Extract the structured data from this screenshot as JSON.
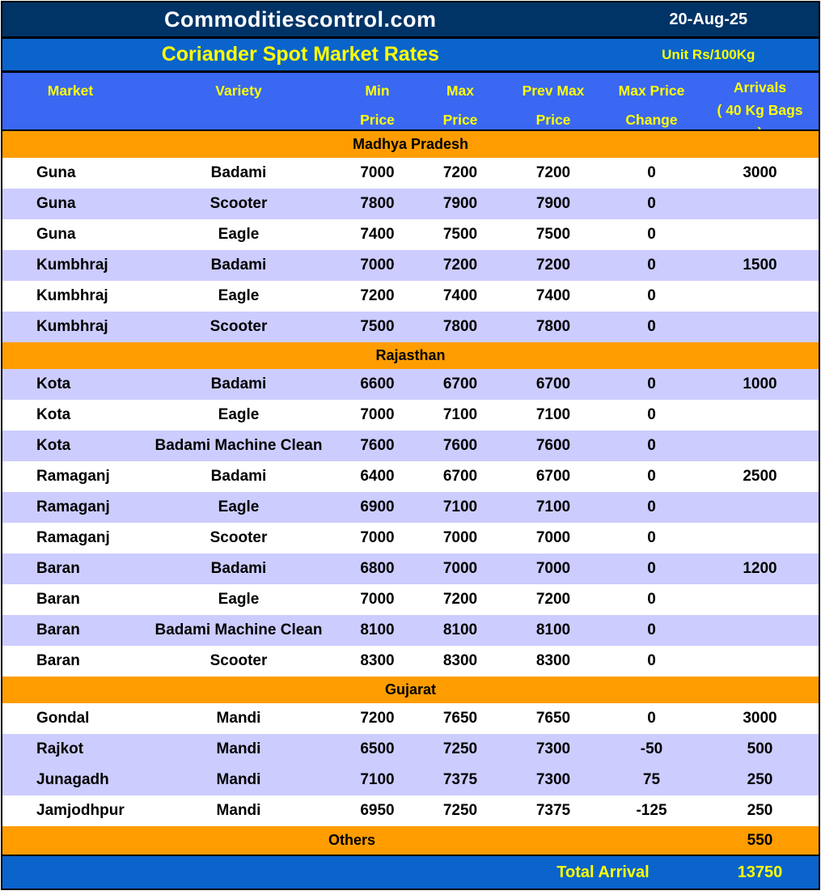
{
  "header": {
    "site_title": "Commoditiescontrol.com",
    "date": "20-Aug-25",
    "report_title": "Coriander Spot Market Rates",
    "unit": "Unit Rs/100Kg"
  },
  "table": {
    "columns": [
      {
        "key": "market",
        "lines": [
          "Market"
        ]
      },
      {
        "key": "variety",
        "lines": [
          "Variety"
        ]
      },
      {
        "key": "min",
        "lines": [
          "Min",
          "Price"
        ]
      },
      {
        "key": "max",
        "lines": [
          "Max",
          "Price"
        ]
      },
      {
        "key": "prev_max",
        "lines": [
          "Prev Max",
          "Price"
        ]
      },
      {
        "key": "change",
        "lines": [
          "Max Price",
          "Change"
        ]
      },
      {
        "key": "arrivals",
        "lines": [
          "Arrivals",
          "( 40 Kg Bags",
          ")"
        ]
      }
    ],
    "sections": [
      {
        "name": "Madhya Pradesh",
        "rows": [
          {
            "shade": "white",
            "cells": [
              "Guna",
              "Badami",
              "7000",
              "7200",
              "7200",
              "0",
              "3000"
            ]
          },
          {
            "shade": "lav",
            "cells": [
              "Guna",
              "Scooter",
              "7800",
              "7900",
              "7900",
              "0",
              ""
            ]
          },
          {
            "shade": "white",
            "cells": [
              "Guna",
              "Eagle",
              "7400",
              "7500",
              "7500",
              "0",
              ""
            ]
          },
          {
            "shade": "lav",
            "cells": [
              "Kumbhraj",
              "Badami",
              "7000",
              "7200",
              "7200",
              "0",
              "1500"
            ]
          },
          {
            "shade": "white",
            "cells": [
              "Kumbhraj",
              "Eagle",
              "7200",
              "7400",
              "7400",
              "0",
              ""
            ]
          },
          {
            "shade": "lav",
            "cells": [
              "Kumbhraj",
              "Scooter",
              "7500",
              "7800",
              "7800",
              "0",
              ""
            ]
          }
        ]
      },
      {
        "name": "Rajasthan",
        "rows": [
          {
            "shade": "lav",
            "cells": [
              "Kota",
              "Badami",
              "6600",
              "6700",
              "6700",
              "0",
              "1000"
            ]
          },
          {
            "shade": "white",
            "cells": [
              "Kota",
              "Eagle",
              "7000",
              "7100",
              "7100",
              "0",
              ""
            ]
          },
          {
            "shade": "lav",
            "cells": [
              "Kota",
              "Badami Machine Clean",
              "7600",
              "7600",
              "7600",
              "0",
              ""
            ]
          },
          {
            "shade": "white",
            "cells": [
              "Ramaganj",
              "Badami",
              "6400",
              "6700",
              "6700",
              "0",
              "2500"
            ]
          },
          {
            "shade": "lav",
            "cells": [
              "Ramaganj",
              "Eagle",
              "6900",
              "7100",
              "7100",
              "0",
              ""
            ]
          },
          {
            "shade": "white",
            "cells": [
              "Ramaganj",
              "Scooter",
              "7000",
              "7000",
              "7000",
              "0",
              ""
            ]
          },
          {
            "shade": "lav",
            "cells": [
              "Baran",
              "Badami",
              "6800",
              "7000",
              "7000",
              "0",
              "1200"
            ]
          },
          {
            "shade": "white",
            "cells": [
              "Baran",
              "Eagle",
              "7000",
              "7200",
              "7200",
              "0",
              ""
            ]
          },
          {
            "shade": "lav",
            "cells": [
              "Baran",
              "Badami Machine Clean",
              "8100",
              "8100",
              "8100",
              "0",
              ""
            ]
          },
          {
            "shade": "white",
            "cells": [
              "Baran",
              "Scooter",
              "8300",
              "8300",
              "8300",
              "0",
              ""
            ]
          }
        ]
      },
      {
        "name": "Gujarat",
        "rows": [
          {
            "shade": "white",
            "cells": [
              "Gondal",
              "Mandi",
              "7200",
              "7650",
              "7650",
              "0",
              "3000"
            ]
          },
          {
            "shade": "lav",
            "cells": [
              "Rajkot",
              "Mandi",
              "6500",
              "7250",
              "7300",
              "-50",
              "500"
            ]
          },
          {
            "shade": "lav",
            "cells": [
              "Junagadh",
              "Mandi",
              "7100",
              "7375",
              "7300",
              "75",
              "250"
            ]
          },
          {
            "shade": "white",
            "cells": [
              "Jamjodhpur",
              "Mandi",
              "6950",
              "7250",
              "7375",
              "-125",
              "250"
            ]
          }
        ]
      }
    ],
    "others": {
      "label": "Others",
      "arrivals": "550"
    },
    "total": {
      "label": "Total Arrival",
      "value": "13750"
    }
  },
  "colors": {
    "navy_header": "#003366",
    "azure_band": "#0A64CC",
    "column_header_blue": "#3A68F2",
    "section_orange": "#FF9D00",
    "row_lavender": "#CCCCFF",
    "row_white": "#FFFFFF",
    "accent_yellow": "#FFFF00",
    "text_black": "#000000",
    "text_white": "#FFFFFF"
  }
}
